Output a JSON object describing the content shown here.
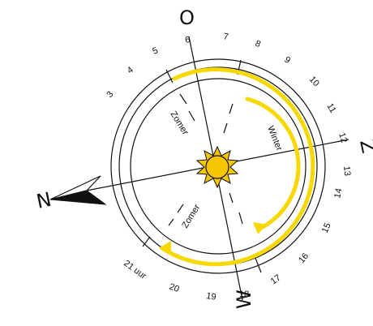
{
  "diagram": {
    "hours": [
      {
        "label": "3"
      },
      {
        "label": "4"
      },
      {
        "label": "5"
      },
      {
        "label": "6"
      },
      {
        "label": "7"
      },
      {
        "label": "8"
      },
      {
        "label": "9"
      },
      {
        "label": "10"
      },
      {
        "label": "11"
      },
      {
        "label": "12"
      },
      {
        "label": "13"
      },
      {
        "label": "14"
      },
      {
        "label": "15"
      },
      {
        "label": "16"
      },
      {
        "label": "17"
      },
      {
        "label": "18"
      },
      {
        "label": "19"
      },
      {
        "label": "20"
      },
      {
        "label": "21 uur"
      }
    ],
    "compass": {
      "north": "N",
      "east": "O",
      "south": "Z",
      "west": "W"
    },
    "seasons": {
      "summer_top": "Zomer",
      "summer_bottom": "Zomer",
      "winter": "Winter"
    },
    "colors": {
      "sun_fill": "#f7c600",
      "sun_path": "#f7d800",
      "ink": "#111111"
    }
  }
}
